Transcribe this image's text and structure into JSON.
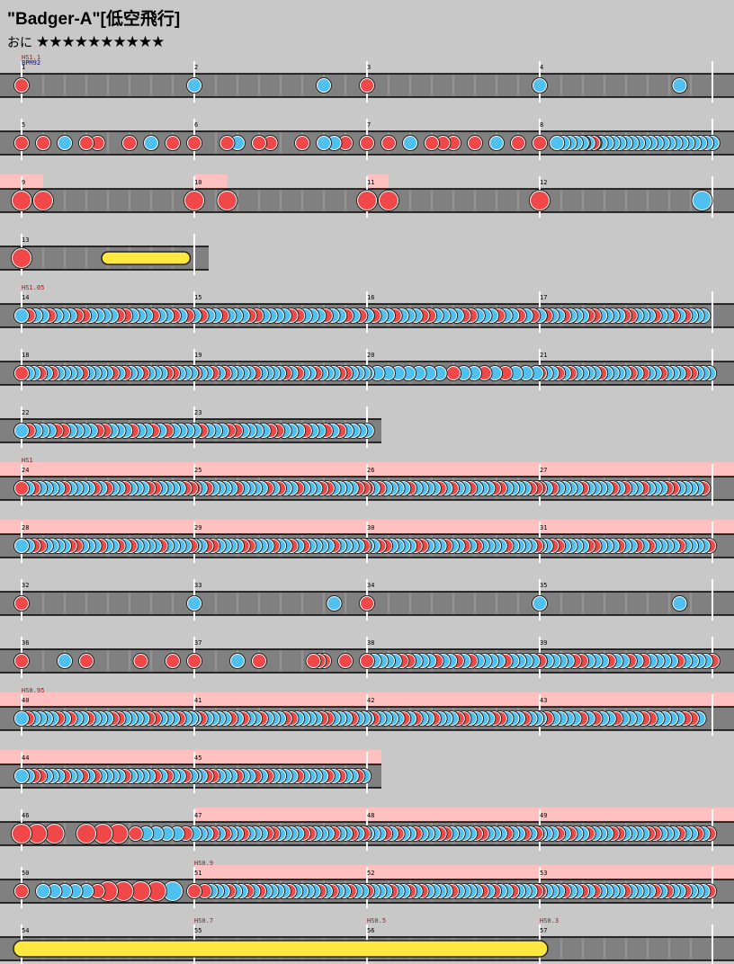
{
  "song": {
    "title": "\"Badger-A\"[低空飛行]",
    "course": "おに",
    "stars": "★★★★★★★★★★",
    "star_count": 10
  },
  "colors": {
    "background": "#c8c8c8",
    "lane": "#808080",
    "gogo_highlight": "#ffc0c0",
    "don": "#f04848",
    "ka": "#50c0f0",
    "drumroll": "#ffe840",
    "text_red": "#d40000",
    "text_blue": "#0000c8"
  },
  "icons": {
    "don_note": "red-circle",
    "ka_note": "blue-circle",
    "drumroll": "yellow-bar"
  },
  "rows": [
    {
      "measures": [
        "1",
        "2",
        "3",
        "4"
      ],
      "labels": [
        {
          "m": 0,
          "text": "HS1.1",
          "kind": "hs"
        },
        {
          "m": 0,
          "text": "BPM92",
          "kind": "bpm"
        }
      ],
      "gogo": [],
      "notes": [
        {
          "m": 0,
          "p": 0,
          "t": "d"
        },
        {
          "m": 1,
          "p": 0,
          "t": "k"
        },
        {
          "m": 1,
          "p": 0.75,
          "t": "k"
        },
        {
          "m": 2,
          "p": 0,
          "t": "d"
        },
        {
          "m": 3,
          "p": 0,
          "t": "k"
        },
        {
          "m": 3,
          "p": 0.81,
          "t": "k"
        }
      ]
    },
    {
      "measures": [
        "5",
        "6",
        "7",
        "8"
      ],
      "labels": [],
      "gogo": [],
      "dense": [
        {
          "m": 3,
          "from": 0.1,
          "to": 1.0,
          "step": 0.036,
          "t": "k"
        }
      ],
      "notes": [
        {
          "m": 0,
          "p": 0,
          "t": "d"
        },
        {
          "m": 0,
          "p": 0.125,
          "t": "d"
        },
        {
          "m": 0,
          "p": 0.25,
          "t": "k"
        },
        {
          "m": 0,
          "p": 0.375,
          "t": "d"
        },
        {
          "m": 0,
          "p": 0.44,
          "t": "d"
        },
        {
          "m": 0,
          "p": 0.625,
          "t": "d"
        },
        {
          "m": 0,
          "p": 0.75,
          "t": "k"
        },
        {
          "m": 0,
          "p": 0.875,
          "t": "d"
        },
        {
          "m": 1,
          "p": 0,
          "t": "d"
        },
        {
          "m": 1,
          "p": 0.19,
          "t": "d"
        },
        {
          "m": 1,
          "p": 0.25,
          "t": "k"
        },
        {
          "m": 1,
          "p": 0.375,
          "t": "d"
        },
        {
          "m": 1,
          "p": 0.44,
          "t": "d"
        },
        {
          "m": 1,
          "p": 0.625,
          "t": "d"
        },
        {
          "m": 1,
          "p": 0.75,
          "t": "k"
        },
        {
          "m": 1,
          "p": 0.81,
          "t": "k"
        },
        {
          "m": 1,
          "p": 0.875,
          "t": "d"
        },
        {
          "m": 2,
          "p": 0,
          "t": "d"
        },
        {
          "m": 2,
          "p": 0.125,
          "t": "d"
        },
        {
          "m": 2,
          "p": 0.25,
          "t": "k"
        },
        {
          "m": 2,
          "p": 0.375,
          "t": "d"
        },
        {
          "m": 2,
          "p": 0.44,
          "t": "d"
        },
        {
          "m": 2,
          "p": 0.5,
          "t": "d"
        },
        {
          "m": 2,
          "p": 0.625,
          "t": "d"
        },
        {
          "m": 2,
          "p": 0.75,
          "t": "k"
        },
        {
          "m": 2,
          "p": 0.875,
          "t": "d"
        },
        {
          "m": 3,
          "p": 0,
          "t": "d"
        },
        {
          "m": 3,
          "p": 0.25,
          "t": "d"
        },
        {
          "m": 3,
          "p": 0.31,
          "t": "d"
        }
      ]
    },
    {
      "measures": [
        "9",
        "10",
        "11",
        "12"
      ],
      "labels": [],
      "gogo": [
        {
          "m": 0,
          "from": 0,
          "to": 0.125
        },
        {
          "m": 1,
          "from": 0,
          "to": 0.19
        },
        {
          "m": 2,
          "from": 0,
          "to": 0.125
        }
      ],
      "notes": [
        {
          "m": 0,
          "p": 0,
          "t": "D"
        },
        {
          "m": 0,
          "p": 0.125,
          "t": "D"
        },
        {
          "m": 1,
          "p": 0,
          "t": "D"
        },
        {
          "m": 1,
          "p": 0.19,
          "t": "D"
        },
        {
          "m": 2,
          "p": 0,
          "t": "D"
        },
        {
          "m": 2,
          "p": 0.125,
          "t": "D"
        },
        {
          "m": 3,
          "p": 0,
          "t": "D"
        },
        {
          "m": 3,
          "p": 0.94,
          "t": "K"
        }
      ]
    },
    {
      "measures": [
        "13"
      ],
      "labels": [],
      "gogo": [],
      "rolls": [
        {
          "m": 0,
          "from": 0.5,
          "to": 0.94,
          "big": false
        }
      ],
      "notes": [
        {
          "m": 0,
          "p": 0,
          "t": "D"
        }
      ]
    },
    {
      "measures": [
        "14",
        "15",
        "16",
        "17"
      ],
      "labels": [
        {
          "m": 0,
          "text": "HS1.05",
          "kind": "hs"
        }
      ],
      "gogo": [],
      "dense": [
        {
          "m": 0,
          "from": 0,
          "to": 1,
          "step": 0.04,
          "t": "mix"
        },
        {
          "m": 1,
          "from": 0,
          "to": 1,
          "step": 0.04,
          "t": "mix"
        },
        {
          "m": 2,
          "from": 0,
          "to": 1,
          "step": 0.04,
          "t": "mix"
        },
        {
          "m": 3,
          "from": 0,
          "to": 0.95,
          "step": 0.035,
          "t": "mix"
        }
      ],
      "notes": []
    },
    {
      "measures": [
        "18",
        "19",
        "20",
        "21"
      ],
      "labels": [],
      "gogo": [],
      "dense": [
        {
          "m": 0,
          "from": 0,
          "to": 1,
          "step": 0.035,
          "t": "mix"
        },
        {
          "m": 1,
          "from": 0,
          "to": 1,
          "step": 0.035,
          "t": "mix"
        },
        {
          "m": 2,
          "from": 0,
          "to": 0.44,
          "step": 0.06,
          "t": "k"
        },
        {
          "m": 2,
          "from": 0.5,
          "to": 1,
          "step": 0.06,
          "t": "mix"
        },
        {
          "m": 3,
          "from": 0,
          "to": 1,
          "step": 0.035,
          "t": "mix"
        }
      ],
      "notes": []
    },
    {
      "measures": [
        "22",
        "23"
      ],
      "labels": [],
      "gogo": [],
      "dense": [
        {
          "m": 0,
          "from": 0,
          "to": 1,
          "step": 0.04,
          "t": "mix"
        },
        {
          "m": 1,
          "from": 0,
          "to": 1,
          "step": 0.04,
          "t": "mix"
        }
      ],
      "notes": []
    },
    {
      "measures": [
        "24",
        "25",
        "26",
        "27"
      ],
      "labels": [
        {
          "m": 0,
          "text": "HS1",
          "kind": "hs"
        }
      ],
      "gogo": [
        {
          "m": -1,
          "from": 0,
          "to": 1
        }
      ],
      "dense": [
        {
          "m": 0,
          "from": 0,
          "to": 1,
          "step": 0.035,
          "t": "mix"
        },
        {
          "m": 1,
          "from": 0,
          "to": 1,
          "step": 0.035,
          "t": "mix"
        },
        {
          "m": 2,
          "from": 0,
          "to": 1,
          "step": 0.035,
          "t": "mix"
        },
        {
          "m": 3,
          "from": 0,
          "to": 0.95,
          "step": 0.035,
          "t": "mix"
        }
      ],
      "notes": []
    },
    {
      "measures": [
        "28",
        "29",
        "30",
        "31"
      ],
      "labels": [],
      "gogo": [
        {
          "m": -1,
          "from": 0,
          "to": 1
        }
      ],
      "dense": [
        {
          "m": 0,
          "from": 0,
          "to": 1,
          "step": 0.035,
          "t": "mix"
        },
        {
          "m": 1,
          "from": 0,
          "to": 1,
          "step": 0.035,
          "t": "mix"
        },
        {
          "m": 2,
          "from": 0,
          "to": 1,
          "step": 0.035,
          "t": "mix"
        },
        {
          "m": 3,
          "from": 0,
          "to": 1,
          "step": 0.035,
          "t": "mix"
        }
      ],
      "notes": []
    },
    {
      "measures": [
        "32",
        "33",
        "34",
        "35"
      ],
      "labels": [],
      "gogo": [],
      "notes": [
        {
          "m": 0,
          "p": 0,
          "t": "d"
        },
        {
          "m": 1,
          "p": 0,
          "t": "k"
        },
        {
          "m": 1,
          "p": 0.81,
          "t": "k"
        },
        {
          "m": 2,
          "p": 0,
          "t": "d"
        },
        {
          "m": 3,
          "p": 0,
          "t": "k"
        },
        {
          "m": 3,
          "p": 0.81,
          "t": "k"
        }
      ]
    },
    {
      "measures": [
        "36",
        "37",
        "38",
        "39"
      ],
      "labels": [],
      "gogo": [],
      "dense": [
        {
          "m": 2,
          "from": 0,
          "to": 1,
          "step": 0.04,
          "t": "mix"
        },
        {
          "m": 3,
          "from": 0,
          "to": 1,
          "step": 0.04,
          "t": "mix"
        }
      ],
      "notes": [
        {
          "m": 0,
          "p": 0,
          "t": "d"
        },
        {
          "m": 0,
          "p": 0.25,
          "t": "k"
        },
        {
          "m": 0,
          "p": 0.375,
          "t": "d"
        },
        {
          "m": 0,
          "p": 0.69,
          "t": "d"
        },
        {
          "m": 0,
          "p": 0.875,
          "t": "d"
        },
        {
          "m": 1,
          "p": 0,
          "t": "d"
        },
        {
          "m": 1,
          "p": 0.25,
          "t": "k"
        },
        {
          "m": 1,
          "p": 0.375,
          "t": "d"
        },
        {
          "m": 1,
          "p": 0.69,
          "t": "d"
        },
        {
          "m": 1,
          "p": 0.72,
          "t": "d"
        },
        {
          "m": 1,
          "p": 0.75,
          "t": "d"
        },
        {
          "m": 1,
          "p": 0.875,
          "t": "d"
        }
      ]
    },
    {
      "measures": [
        "40",
        "41",
        "42",
        "43"
      ],
      "labels": [
        {
          "m": 0,
          "text": "HS0.95",
          "kind": "hs"
        }
      ],
      "gogo": [
        {
          "m": -1,
          "from": 0,
          "to": 1
        }
      ],
      "dense": [
        {
          "m": 0,
          "from": 0,
          "to": 1,
          "step": 0.035,
          "t": "mix"
        },
        {
          "m": 1,
          "from": 0,
          "to": 1,
          "step": 0.035,
          "t": "mix"
        },
        {
          "m": 2,
          "from": 0,
          "to": 1,
          "step": 0.035,
          "t": "mix"
        },
        {
          "m": 3,
          "from": 0,
          "to": 0.95,
          "step": 0.04,
          "t": "mix"
        }
      ],
      "notes": []
    },
    {
      "measures": [
        "44",
        "45"
      ],
      "labels": [],
      "gogo": [
        {
          "m": 0,
          "from": 0,
          "to": 1
        },
        {
          "m": 1,
          "from": 0,
          "to": 1
        }
      ],
      "dense": [
        {
          "m": 0,
          "from": 0,
          "to": 1,
          "step": 0.035,
          "t": "mix"
        },
        {
          "m": 1,
          "from": 0,
          "to": 1,
          "step": 0.035,
          "t": "mix"
        }
      ],
      "notes": []
    },
    {
      "measures": [
        "46",
        "47",
        "48",
        "49"
      ],
      "labels": [],
      "gogo": [
        {
          "m": 1,
          "from": 0,
          "to": 1
        },
        {
          "m": 2,
          "from": 0,
          "to": 1
        },
        {
          "m": 3,
          "from": 0,
          "to": 1
        }
      ],
      "dense": [
        {
          "m": 1,
          "from": 0,
          "to": 1,
          "step": 0.035,
          "t": "mix"
        },
        {
          "m": 2,
          "from": 0,
          "to": 1,
          "step": 0.035,
          "t": "mix"
        },
        {
          "m": 3,
          "from": 0,
          "to": 1,
          "step": 0.035,
          "t": "mix"
        }
      ],
      "notes": [
        {
          "m": 0,
          "p": 0,
          "t": "D"
        },
        {
          "m": 0,
          "p": 0.09,
          "t": "D"
        },
        {
          "m": 0,
          "p": 0.19,
          "t": "D"
        },
        {
          "m": 0,
          "p": 0.375,
          "t": "D"
        },
        {
          "m": 0,
          "p": 0.47,
          "t": "D"
        },
        {
          "m": 0,
          "p": 0.56,
          "t": "D"
        },
        {
          "m": 0,
          "p": 0.66,
          "t": "d"
        },
        {
          "m": 0,
          "p": 0.72,
          "t": "k"
        },
        {
          "m": 0,
          "p": 0.78,
          "t": "k"
        },
        {
          "m": 0,
          "p": 0.84,
          "t": "k"
        },
        {
          "m": 0,
          "p": 0.9,
          "t": "k"
        },
        {
          "m": 0,
          "p": 0.95,
          "t": "d"
        }
      ]
    },
    {
      "measures": [
        "50",
        "51",
        "52",
        "53"
      ],
      "labels": [
        {
          "m": 1,
          "text": "HS0.9",
          "kind": "hs"
        }
      ],
      "gogo": [
        {
          "m": 1,
          "from": 0,
          "to": 1
        },
        {
          "m": 2,
          "from": 0,
          "to": 1
        },
        {
          "m": 3,
          "from": 0,
          "to": 1
        }
      ],
      "dense": [
        {
          "m": 1,
          "from": 0.06,
          "to": 1,
          "step": 0.035,
          "t": "mix"
        },
        {
          "m": 2,
          "from": 0,
          "to": 1,
          "step": 0.035,
          "t": "mix"
        },
        {
          "m": 3,
          "from": 0,
          "to": 1,
          "step": 0.035,
          "t": "mix"
        }
      ],
      "notes": [
        {
          "m": 0,
          "p": 0,
          "t": "d"
        },
        {
          "m": 0,
          "p": 0.125,
          "t": "k"
        },
        {
          "m": 0,
          "p": 0.19,
          "t": "k"
        },
        {
          "m": 0,
          "p": 0.25,
          "t": "k"
        },
        {
          "m": 0,
          "p": 0.31,
          "t": "k"
        },
        {
          "m": 0,
          "p": 0.375,
          "t": "k"
        },
        {
          "m": 0,
          "p": 0.44,
          "t": "d"
        },
        {
          "m": 0,
          "p": 0.5,
          "t": "D"
        },
        {
          "m": 0,
          "p": 0.59,
          "t": "D"
        },
        {
          "m": 0,
          "p": 0.69,
          "t": "D"
        },
        {
          "m": 0,
          "p": 0.78,
          "t": "D"
        },
        {
          "m": 0,
          "p": 0.875,
          "t": "K"
        },
        {
          "m": 1,
          "p": 0,
          "t": "d"
        }
      ]
    },
    {
      "measures": [
        "54",
        "55",
        "56",
        "57"
      ],
      "labels": [
        {
          "m": 1,
          "text": "HS0.7",
          "kind": "hs"
        },
        {
          "m": 2,
          "text": "HS0.5",
          "kind": "hs"
        },
        {
          "m": 3,
          "text": "HS0.3",
          "kind": "hs"
        }
      ],
      "gogo": [],
      "rolls": [
        {
          "m": 0,
          "from": 0,
          "to": 3.0,
          "big": true
        }
      ],
      "notes": []
    }
  ]
}
